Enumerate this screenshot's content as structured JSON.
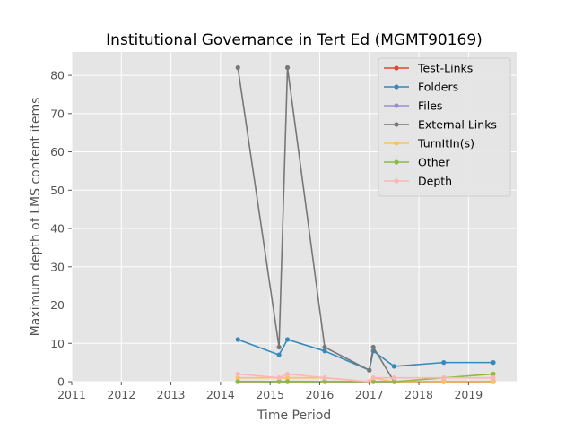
{
  "chart_data": {
    "type": "line",
    "title": "Institutional Governance in Tert Ed (MGMT90169)",
    "xlabel": "Time Period",
    "ylabel": "Maximum depth of LMS content items",
    "xlim": [
      2011.0,
      2019.97
    ],
    "ylim": [
      0,
      86.1
    ],
    "x_ticks": [
      2011,
      2012,
      2013,
      2014,
      2015,
      2016,
      2017,
      2018,
      2019
    ],
    "y_ticks": [
      0,
      10,
      20,
      30,
      40,
      50,
      60,
      70,
      80
    ],
    "grid": true,
    "legend_position": "top-right",
    "series": [
      {
        "name": "Test-Links",
        "color": "#E24A33",
        "x": [
          2014.35,
          2015.18,
          2015.35,
          2016.1,
          2017.0,
          2017.08,
          2017.5,
          2018.5,
          2019.5
        ],
        "y": [
          0,
          0,
          0,
          0,
          0,
          0,
          0,
          0,
          0
        ]
      },
      {
        "name": "Folders",
        "color": "#348ABD",
        "x": [
          2014.35,
          2015.18,
          2015.35,
          2016.1,
          2017.0,
          2017.08,
          2017.5,
          2018.5,
          2019.5
        ],
        "y": [
          11,
          7,
          11,
          8,
          3,
          8,
          4,
          5,
          5
        ]
      },
      {
        "name": "Files",
        "color": "#988ED5",
        "x": [
          2014.35,
          2015.18,
          2015.35,
          2016.1,
          2017.0,
          2017.08,
          2017.5,
          2018.5,
          2019.5
        ],
        "y": [
          0,
          0,
          0,
          0,
          0,
          0,
          0,
          0,
          0
        ]
      },
      {
        "name": "External Links",
        "color": "#777777",
        "x": [
          2014.35,
          2015.18,
          2015.35,
          2016.1,
          2017.0,
          2017.08,
          2017.5,
          2018.5,
          2019.5
        ],
        "y": [
          82,
          9,
          82,
          9,
          3,
          9,
          0,
          0,
          0
        ]
      },
      {
        "name": "TurnItIn(s)",
        "color": "#FBC15E",
        "x": [
          2014.35,
          2015.18,
          2015.35,
          2016.1,
          2017.0,
          2017.08,
          2017.5,
          2018.5,
          2019.5
        ],
        "y": [
          1,
          1,
          1,
          1,
          0,
          1,
          0,
          0,
          0
        ]
      },
      {
        "name": "Other",
        "color": "#8EBA42",
        "x": [
          2014.35,
          2015.18,
          2015.35,
          2016.1,
          2017.0,
          2017.08,
          2017.5,
          2018.5,
          2019.5
        ],
        "y": [
          0,
          0,
          0,
          0,
          0,
          0,
          0,
          1,
          2
        ]
      },
      {
        "name": "Depth",
        "color": "#FFB5B8",
        "x": [
          2014.35,
          2015.18,
          2015.35,
          2016.1,
          2017.0,
          2017.08,
          2017.5,
          2018.5,
          2019.5
        ],
        "y": [
          2,
          1,
          2,
          1,
          0,
          1,
          1,
          1,
          1
        ]
      }
    ]
  }
}
